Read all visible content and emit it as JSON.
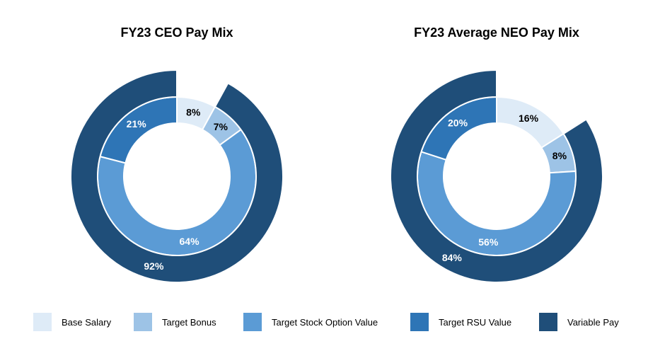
{
  "chart_data": [
    {
      "type": "donut",
      "title": "FY23 CEO Pay Mix",
      "inner_ring": {
        "categories": [
          "Base Salary",
          "Target Bonus",
          "Target Stock Option Value",
          "Target RSU Value"
        ],
        "values": [
          8,
          7,
          64,
          21
        ],
        "labels": [
          "8%",
          "7%",
          "64%",
          "21%"
        ]
      },
      "outer_ring": {
        "categories": [
          "Variable Pay"
        ],
        "values": [
          92
        ],
        "labels": [
          "92%"
        ],
        "offset_percent": 8
      }
    },
    {
      "type": "donut",
      "title": "FY23 Average NEO Pay Mix",
      "inner_ring": {
        "categories": [
          "Base Salary",
          "Target Bonus",
          "Target Stock Option Value",
          "Target RSU Value"
        ],
        "values": [
          16,
          8,
          56,
          20
        ],
        "labels": [
          "16%",
          "8%",
          "56%",
          "20%"
        ]
      },
      "outer_ring": {
        "categories": [
          "Variable Pay"
        ],
        "values": [
          84
        ],
        "labels": [
          "84%"
        ],
        "offset_percent": 16
      }
    }
  ],
  "legend": {
    "position": "bottom",
    "items": [
      {
        "label": "Base Salary",
        "color": "#DEEBF7"
      },
      {
        "label": "Target Bonus",
        "color": "#9DC3E6"
      },
      {
        "label": "Target Stock Option Value",
        "color": "#5B9BD5"
      },
      {
        "label": "Target RSU Value",
        "color": "#2E75B6"
      },
      {
        "label": "Variable Pay",
        "color": "#1F4E79"
      }
    ]
  },
  "label_colors": {
    "light": "#000000",
    "dark": "#FFFFFF"
  }
}
